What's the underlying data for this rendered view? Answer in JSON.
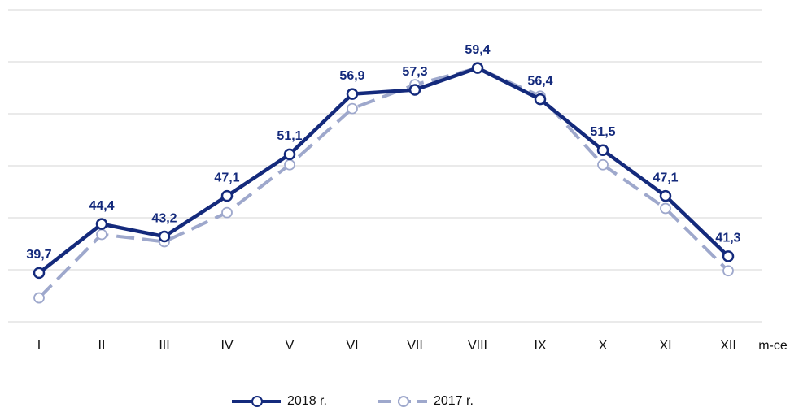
{
  "chart_data": {
    "type": "line",
    "categories": [
      "I",
      "II",
      "III",
      "IV",
      "V",
      "VI",
      "VII",
      "VIII",
      "IX",
      "X",
      "XI",
      "XII"
    ],
    "xlabel": "m-ce",
    "series": [
      {
        "name": "2018 r.",
        "color": "#142a7c",
        "values": [
          39.7,
          44.4,
          43.2,
          47.1,
          51.1,
          56.9,
          57.3,
          59.4,
          56.4,
          51.5,
          47.1,
          41.3
        ],
        "value_labels": [
          "39,7",
          "44,4",
          "43,2",
          "47,1",
          "51,1",
          "56,9",
          "57,3",
          "59,4",
          "56,4",
          "51,5",
          "47,1",
          "41,3"
        ]
      },
      {
        "name": "2017 r.",
        "color": "#9ea8cc",
        "dashed": true,
        "values": [
          37.3,
          43.4,
          42.7,
          45.5,
          50.1,
          55.5,
          57.8,
          59.4,
          56.7,
          50.1,
          45.9,
          39.9
        ]
      }
    ],
    "ylim": [
      35,
      65
    ],
    "yticks": [
      35,
      40,
      45,
      50,
      55,
      60,
      65
    ],
    "grid": true
  }
}
